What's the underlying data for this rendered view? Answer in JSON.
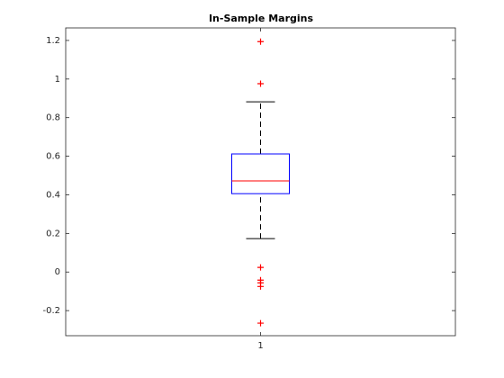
{
  "chart_data": {
    "type": "box",
    "title": "In-Sample Margins",
    "categories": [
      "1"
    ],
    "boxes": [
      {
        "min": 0.173,
        "q1": 0.406,
        "median": 0.472,
        "q3": 0.612,
        "max": 0.882,
        "outliers": [
          1.194,
          0.976,
          0.024,
          -0.042,
          -0.056,
          -0.075,
          -0.265
        ]
      }
    ],
    "box_color": "#0000ff",
    "median_color": "#ff0000",
    "whisker_color": "#000000",
    "outlier_color": "#ff0000",
    "ylim": [
      -0.33,
      1.265
    ],
    "yticks": [
      -0.2,
      0,
      0.2,
      0.4,
      0.6,
      0.8,
      1,
      1.2
    ]
  }
}
